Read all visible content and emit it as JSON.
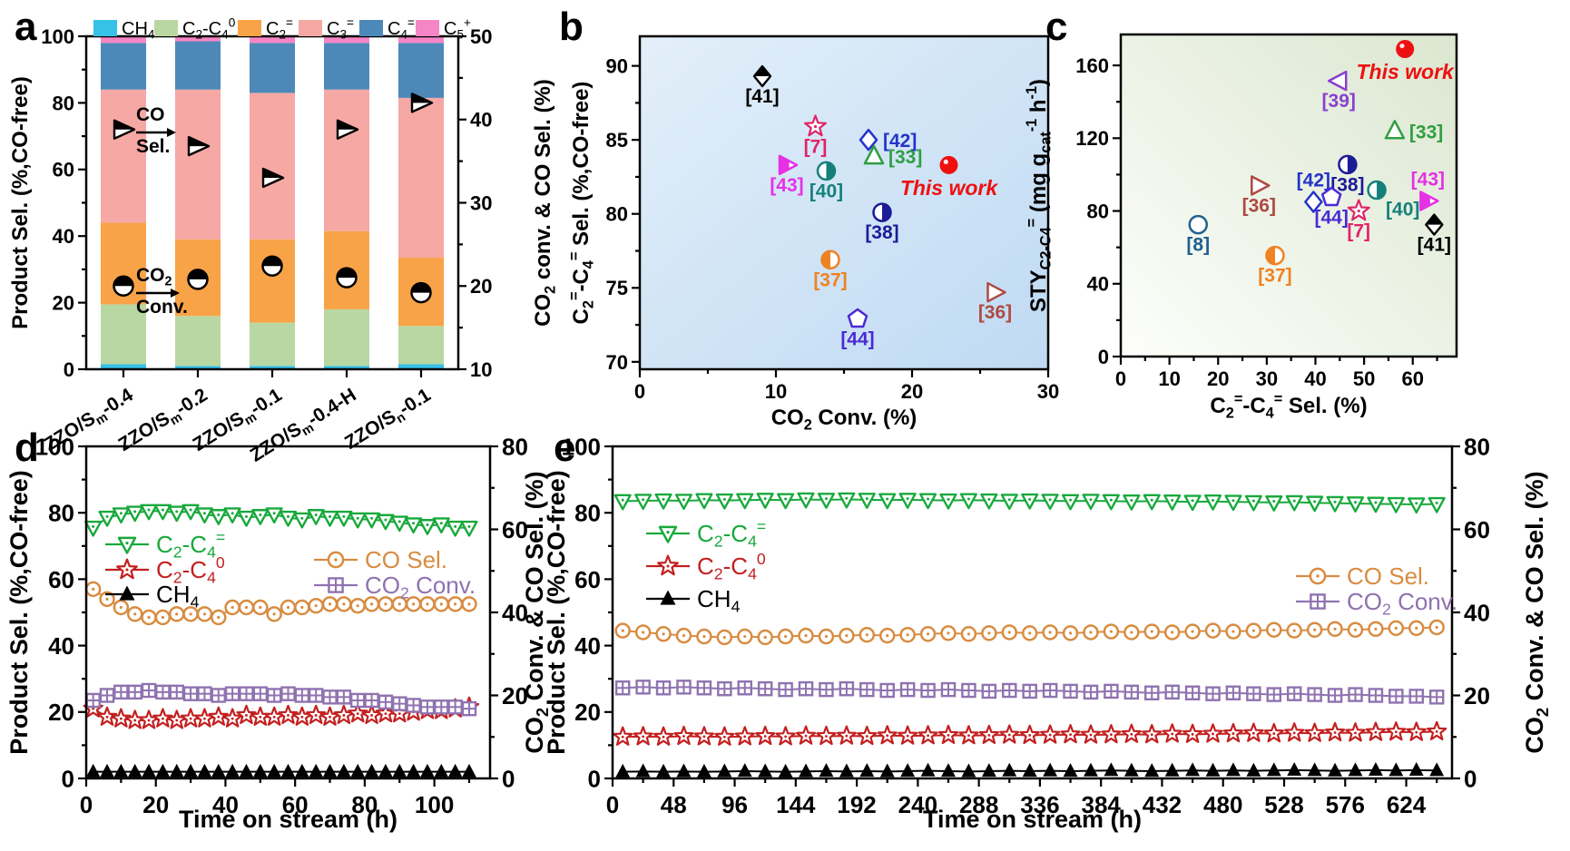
{
  "figure": {
    "letters": {
      "a": "a",
      "b": "b",
      "c": "c",
      "d": "d",
      "e": "e"
    }
  },
  "chart_data": [
    {
      "id": "a",
      "type": "bar",
      "stacked": true,
      "ylabel_left": "Product Sel. (%,CO-free)",
      "ylabel_right": "CO~2~ conv. & CO Sel. (%)",
      "ylim_left": [
        0,
        100
      ],
      "ytickL_major": 20,
      "ytickL_minor": 10,
      "ylim_right": [
        10,
        50
      ],
      "ytickR_major": 10,
      "ytickR_minor": 5,
      "categories": [
        "ZZO/S~m~-0.4",
        "ZZO/S~m~-0.2",
        "ZZO/S~m~-0.1",
        "ZZO/S~m~-0.4-H",
        "ZZO/S~n~-0.1"
      ],
      "series": [
        {
          "name": "CH~4~",
          "color": "#35c1e8",
          "values": [
            1.5,
            1,
            1,
            1,
            1.5
          ]
        },
        {
          "name": "C~2~-C~4~^0^",
          "color": "#b9d7a2",
          "values": [
            18,
            15,
            13,
            17,
            11.5
          ]
        },
        {
          "name": "C~2~^=^",
          "color": "#f9a348",
          "values": [
            24.5,
            23,
            25,
            23.5,
            20.5
          ]
        },
        {
          "name": "C~3~^=^",
          "color": "#f6a8a4",
          "values": [
            40,
            45,
            44,
            42.5,
            48
          ]
        },
        {
          "name": "C~4~^=^",
          "color": "#4d89b8",
          "values": [
            14,
            14.5,
            15,
            14,
            16.5
          ]
        },
        {
          "name": "C~5~^+^",
          "color": "#f685c5",
          "values": [
            2,
            1.5,
            2,
            2,
            2
          ]
        }
      ],
      "overlay_markers": [
        {
          "name": "CO Sel.",
          "marker": "tri-right-halftop",
          "color": "#000000",
          "axis": "right",
          "values": [
            38.8,
            36.8,
            33,
            38.8,
            42
          ]
        },
        {
          "name": "CO~2~ Conv.",
          "marker": "circle-half-top",
          "color": "#000000",
          "axis": "right",
          "values": [
            20,
            20.8,
            22.4,
            21,
            19.2
          ]
        }
      ],
      "annotations": [
        {
          "top": "CO",
          "bottom": "Sel."
        },
        {
          "top": "CO~2~",
          "bottom": "Conv."
        }
      ]
    },
    {
      "id": "b",
      "type": "scatter",
      "xlabel": "CO~2~ Conv. (%)",
      "ylabel": "C~2~^=^-C~4~^=^ Sel. (%,CO-free)",
      "xlim": [
        0,
        30
      ],
      "xtick_major": 10,
      "xtick_minor": 5,
      "ylim": [
        69.5,
        92
      ],
      "ytick_major": 5,
      "ytick_minor": 2.5,
      "bg": [
        "#e3eff9",
        "#bfdaf3"
      ],
      "points": [
        {
          "ref": "[41]",
          "x": 9.0,
          "y": 89.3,
          "marker": "diamond-half-top",
          "color": "#000000",
          "label_pos": "below"
        },
        {
          "ref": "[7]",
          "x": 12.9,
          "y": 85.9,
          "marker": "star-open",
          "color": "#e02468",
          "label_pos": "below"
        },
        {
          "ref": "[42]",
          "x": 16.8,
          "y": 85.0,
          "marker": "diamond-open",
          "color": "#2433c8",
          "label_pos": "right"
        },
        {
          "ref": "[33]",
          "x": 17.2,
          "y": 83.9,
          "marker": "tri-up-open",
          "color": "#2f9e41",
          "label_pos": "right"
        },
        {
          "ref": "[43]",
          "x": 10.8,
          "y": 83.3,
          "marker": "tri-right-half",
          "color": "#e630e6",
          "label_pos": "below"
        },
        {
          "ref": "[40]",
          "x": 13.7,
          "y": 82.9,
          "marker": "circle-half-right",
          "color": "#15807a",
          "label_pos": "below"
        },
        {
          "ref": "This work",
          "x": 22.7,
          "y": 83.3,
          "marker": "circle-filled",
          "color": "#ee1111",
          "label_pos": "below",
          "highlight": true
        },
        {
          "ref": "[38]",
          "x": 17.8,
          "y": 80.1,
          "marker": "circle-half-right",
          "color": "#1c1c96",
          "label_pos": "below"
        },
        {
          "ref": "[37]",
          "x": 14.0,
          "y": 76.9,
          "marker": "circle-half-left",
          "color": "#ef8222",
          "label_pos": "below"
        },
        {
          "ref": "[44]",
          "x": 16.0,
          "y": 72.9,
          "marker": "pentagon-open",
          "color": "#4a2ad4",
          "label_pos": "below"
        },
        {
          "ref": "[36]",
          "x": 26.1,
          "y": 74.7,
          "marker": "tri-right-open",
          "color": "#ad4a42",
          "label_pos": "below"
        }
      ]
    },
    {
      "id": "c",
      "type": "scatter",
      "xlabel": "C~2~^=^-C~4~^=^ Sel. (%)",
      "ylabel": "STY~C2-C4~^=^ (mg g~cat~^-1^ h^-1^)",
      "xlim": [
        0,
        69
      ],
      "xtick_major": 10,
      "xtick_minor": 5,
      "ylim": [
        0,
        177
      ],
      "ytick_major": 40,
      "ytick_minor": 20,
      "bg": [
        "#fdfefb",
        "#dbe7d0"
      ],
      "points": [
        {
          "ref": "This work",
          "x": 58.4,
          "y": 169,
          "marker": "circle-filled",
          "color": "#ee1111",
          "label_pos": "below",
          "highlight": true
        },
        {
          "ref": "[39]",
          "x": 44.8,
          "y": 151.5,
          "marker": "tri-left-open",
          "color": "#8b3fd0",
          "label_pos": "below"
        },
        {
          "ref": "[33]",
          "x": 56.3,
          "y": 124,
          "marker": "tri-up-open",
          "color": "#2f9e41",
          "label_pos": "right"
        },
        {
          "ref": "[38]",
          "x": 46.6,
          "y": 105.5,
          "marker": "circle-half-right",
          "color": "#1c1c96",
          "label_pos": "below"
        },
        {
          "ref": "[36]",
          "x": 28.4,
          "y": 94,
          "marker": "tri-right-open",
          "color": "#ad4a42",
          "label_pos": "below"
        },
        {
          "ref": "[42]",
          "x": 39.6,
          "y": 85,
          "marker": "diamond-open",
          "color": "#2433c8",
          "label_pos": "above"
        },
        {
          "ref": "[44]",
          "x": 43.3,
          "y": 87.5,
          "marker": "pentagon-open",
          "color": "#4a2ad4",
          "label_pos": "below"
        },
        {
          "ref": "[40]",
          "x": 52.6,
          "y": 91.5,
          "marker": "circle-half-right",
          "color": "#15807a",
          "label_pos": "below-right"
        },
        {
          "ref": "[7]",
          "x": 48.9,
          "y": 80,
          "marker": "star-open",
          "color": "#e02468",
          "label_pos": "below"
        },
        {
          "ref": "[43]",
          "x": 63.1,
          "y": 85.5,
          "marker": "tri-right-half",
          "color": "#e630e6",
          "label_pos": "above"
        },
        {
          "ref": "[41]",
          "x": 64.4,
          "y": 72.5,
          "marker": "diamond-half-top",
          "color": "#000000",
          "label_pos": "below"
        },
        {
          "ref": "[8]",
          "x": 15.9,
          "y": 72.5,
          "marker": "circle-open",
          "color": "#1f6090",
          "label_pos": "below"
        },
        {
          "ref": "[37]",
          "x": 31.7,
          "y": 55.5,
          "marker": "circle-half-left",
          "color": "#ef8222",
          "label_pos": "below"
        }
      ]
    },
    {
      "id": "d",
      "type": "line",
      "xlabel": "Time on stream (h)",
      "ylabel_left": "Product Sel. (%,CO-free)",
      "ylabel_right": "CO~2~ Conv. & CO Sel. (%)",
      "xlim": [
        0,
        116
      ],
      "xtick_major": 20,
      "xtick_minor": 10,
      "ylim_left": [
        0,
        100
      ],
      "ytickL_major": 20,
      "ytickL_minor": 10,
      "ylim_right": [
        0,
        80
      ],
      "ytickR_major": 20,
      "ytickR_minor": 10,
      "x": [
        2,
        6,
        10,
        14,
        18,
        22,
        26,
        30,
        34,
        38,
        42,
        46,
        50,
        54,
        58,
        62,
        66,
        70,
        74,
        78,
        82,
        86,
        90,
        94,
        98,
        102,
        106,
        110
      ],
      "series": [
        {
          "name": "C~2~-C~4~^=^",
          "axis": "left",
          "marker": "tri-down-open-dot",
          "color": "#18a93c",
          "values": [
            75.5,
            78.5,
            79.5,
            80,
            80.5,
            80.5,
            80,
            80.5,
            79.5,
            79,
            79.5,
            78.5,
            79,
            79.5,
            78.5,
            78,
            79,
            78.5,
            78.5,
            78,
            78,
            77.5,
            77,
            76.5,
            76,
            76.5,
            75.5,
            75.5
          ]
        },
        {
          "name": "C~2~-C~4~^0^",
          "axis": "left",
          "marker": "star-open",
          "color": "#c32020",
          "values": [
            21,
            18.5,
            18,
            17.5,
            17.5,
            18,
            17.5,
            18,
            18,
            18.5,
            18,
            19,
            18.5,
            18.5,
            19,
            18.5,
            19,
            18.5,
            19,
            19.5,
            19,
            19.5,
            19.5,
            20,
            20.5,
            20.5,
            21,
            21.5
          ]
        },
        {
          "name": "CH~4~",
          "axis": "left",
          "marker": "tri-up-filled",
          "color": "#000000",
          "values": [
            2,
            2,
            2,
            2,
            2,
            2,
            2,
            2,
            2,
            2,
            2,
            2,
            2,
            2,
            2,
            2,
            2,
            2,
            2,
            2,
            2,
            2,
            2,
            2,
            2,
            2,
            2,
            2
          ]
        },
        {
          "name": "CO Sel.",
          "axis": "right",
          "marker": "circle-open-dot",
          "color": "#d88c42",
          "values": [
            45.6,
            43.2,
            41.2,
            39.6,
            38.8,
            38.8,
            39.6,
            39.6,
            39.6,
            38.8,
            41.2,
            41.2,
            41.2,
            39.6,
            41.2,
            41.2,
            41.6,
            42,
            42,
            41.6,
            42,
            42,
            42,
            42,
            42,
            42,
            42,
            42
          ]
        },
        {
          "name": "CO~2~ Conv.",
          "axis": "right",
          "marker": "square-cross",
          "color": "#8f72b0",
          "values": [
            18.8,
            20,
            20.8,
            20.8,
            21.2,
            20.8,
            20.8,
            20.4,
            20.4,
            20,
            20.4,
            20.4,
            20.4,
            20,
            20.4,
            20,
            20,
            19.6,
            19.6,
            18.8,
            18.8,
            18.4,
            18,
            17.6,
            17.2,
            17.2,
            17.2,
            16.8
          ]
        }
      ]
    },
    {
      "id": "e",
      "type": "line",
      "xlabel": "Time on stream (h)",
      "ylabel_left": "Product Sel. (%,CO-free)",
      "ylabel_right": "CO~2~ Conv. & CO Sel. (%)",
      "xlim": [
        0,
        660
      ],
      "xtick_major": 48,
      "xtick_minor": 24,
      "ylim_left": [
        0,
        100
      ],
      "ytickL_major": 20,
      "ytickL_minor": 10,
      "ylim_right": [
        0,
        80
      ],
      "ytickR_major": 20,
      "ytickR_minor": 10,
      "x": [
        8,
        24,
        40,
        56,
        72,
        88,
        104,
        120,
        136,
        152,
        168,
        184,
        200,
        216,
        232,
        248,
        264,
        280,
        296,
        312,
        328,
        344,
        360,
        376,
        392,
        408,
        424,
        440,
        456,
        472,
        488,
        504,
        520,
        536,
        552,
        568,
        584,
        600,
        616,
        632,
        648
      ],
      "series": [
        {
          "name": "C~2~-C~4~^=^",
          "axis": "left",
          "marker": "tri-down-open-dot",
          "color": "#18a93c",
          "values": [
            83.5,
            83.6,
            83.7,
            83.6,
            83.8,
            83.7,
            83.8,
            83.9,
            83.8,
            84,
            83.9,
            84,
            83.9,
            83.8,
            83.9,
            83.8,
            83.7,
            83.8,
            83.7,
            83.6,
            83.7,
            83.6,
            83.5,
            83.6,
            83.5,
            83.4,
            83.5,
            83.4,
            83.3,
            83.4,
            83.3,
            83.2,
            83.1,
            83.2,
            83,
            82.9,
            82.8,
            82.7,
            82.6,
            82.5,
            82.6
          ]
        },
        {
          "name": "C~2~-C~4~^0^",
          "axis": "left",
          "marker": "star-open",
          "color": "#c32020",
          "values": [
            12.5,
            12.6,
            12.5,
            12.7,
            12.6,
            12.5,
            12.6,
            12.7,
            12.6,
            12.8,
            12.7,
            12.8,
            12.7,
            12.9,
            12.8,
            12.9,
            13,
            12.9,
            13,
            13.1,
            13,
            13.1,
            13.2,
            13.1,
            13.2,
            13.3,
            13.2,
            13.4,
            13.3,
            13.4,
            13.5,
            13.6,
            13.5,
            13.7,
            13.6,
            13.8,
            13.7,
            13.9,
            14,
            13.9,
            14.1
          ]
        },
        {
          "name": "CH~4~",
          "axis": "left",
          "marker": "tri-up-filled",
          "color": "#000000",
          "values": [
            2,
            2.1,
            2,
            2.1,
            2,
            2.1,
            2.2,
            2.1,
            2,
            2.1,
            2.2,
            2.1,
            2.2,
            2.1,
            2.2,
            2.3,
            2.2,
            2.1,
            2.2,
            2.3,
            2.2,
            2.3,
            2.2,
            2.3,
            2.4,
            2.3,
            2.2,
            2.3,
            2.4,
            2.3,
            2.4,
            2.3,
            2.4,
            2.5,
            2.4,
            2.3,
            2.4,
            2.5,
            2.4,
            2.5,
            2.4
          ]
        },
        {
          "name": "CO Sel.",
          "axis": "right",
          "marker": "circle-open-dot",
          "color": "#d88c42",
          "values": [
            35.6,
            35.2,
            34.8,
            34.4,
            34.2,
            34,
            34.2,
            34,
            34.2,
            34.4,
            34.2,
            34.4,
            34.6,
            34.4,
            34.6,
            34.8,
            35,
            34.8,
            35,
            35.2,
            35,
            35.2,
            35,
            35.2,
            35.4,
            35.2,
            35.4,
            35.2,
            35.4,
            35.6,
            35.4,
            35.6,
            35.8,
            35.6,
            35.8,
            36,
            35.8,
            36,
            36.2,
            36.2,
            36.4
          ]
        },
        {
          "name": "CO~2~ Conv.",
          "axis": "right",
          "marker": "square-cross",
          "color": "#8f72b0",
          "values": [
            21.8,
            22,
            21.8,
            22,
            21.8,
            21.6,
            21.8,
            21.6,
            21.4,
            21.6,
            21.4,
            21.6,
            21.4,
            21.2,
            21.4,
            21.2,
            21.4,
            21.2,
            21,
            21.2,
            21,
            21.2,
            21,
            20.8,
            21,
            20.8,
            20.6,
            20.8,
            20.6,
            20.4,
            20.6,
            20.4,
            20.2,
            20.4,
            20.2,
            20,
            20.2,
            20,
            19.8,
            19.8,
            19.6
          ]
        }
      ]
    }
  ]
}
